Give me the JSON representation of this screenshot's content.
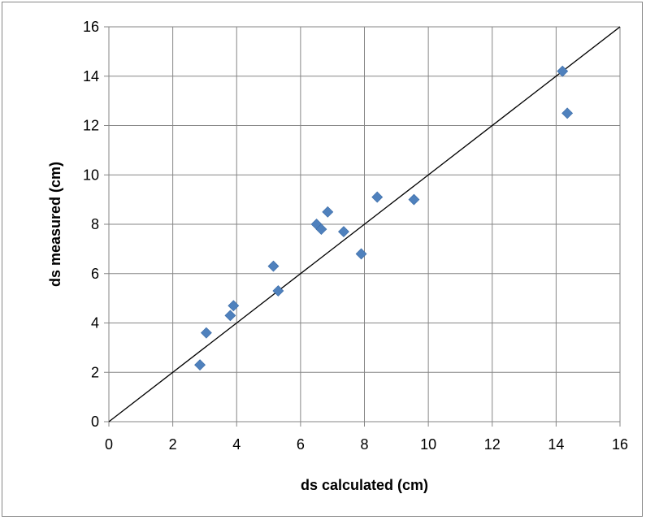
{
  "chart_data": {
    "type": "scatter",
    "title": "",
    "xlabel": "ds calculated (cm)",
    "ylabel": "ds measured (cm)",
    "xlim": [
      0,
      16
    ],
    "ylim": [
      0,
      16
    ],
    "x_ticks": [
      0,
      2,
      4,
      6,
      8,
      10,
      12,
      14,
      16
    ],
    "y_ticks": [
      0,
      2,
      4,
      6,
      8,
      10,
      12,
      14,
      16
    ],
    "grid": true,
    "legend": "none",
    "marker": "diamond",
    "marker_color": "#4f81bd",
    "points": [
      {
        "x": 2.85,
        "y": 2.3
      },
      {
        "x": 3.05,
        "y": 3.6
      },
      {
        "x": 3.8,
        "y": 4.3
      },
      {
        "x": 3.9,
        "y": 4.7
      },
      {
        "x": 5.15,
        "y": 6.3
      },
      {
        "x": 5.3,
        "y": 5.3
      },
      {
        "x": 6.5,
        "y": 8.0
      },
      {
        "x": 6.65,
        "y": 7.8
      },
      {
        "x": 6.85,
        "y": 8.5
      },
      {
        "x": 7.35,
        "y": 7.7
      },
      {
        "x": 7.9,
        "y": 6.8
      },
      {
        "x": 8.4,
        "y": 9.1
      },
      {
        "x": 9.55,
        "y": 9.0
      },
      {
        "x": 14.2,
        "y": 14.2
      },
      {
        "x": 14.35,
        "y": 12.5
      }
    ],
    "reference_line": {
      "x": [
        0,
        16
      ],
      "y": [
        0,
        16
      ],
      "color": "#000000"
    }
  }
}
